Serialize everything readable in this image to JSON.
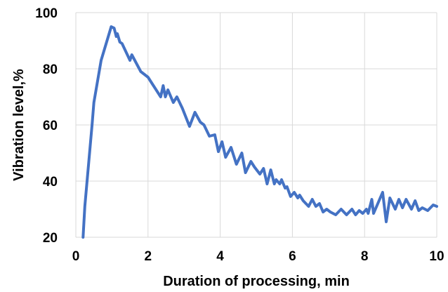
{
  "chart_data": {
    "type": "line",
    "title": "",
    "xlabel": "Duration of processing, min",
    "ylabel": "Vibration level,%",
    "xlim": [
      0,
      10
    ],
    "ylim": [
      20,
      100
    ],
    "x_ticks": [
      "0",
      "2",
      "4",
      "6",
      "8",
      "10"
    ],
    "y_ticks": [
      "20",
      "40",
      "60",
      "80",
      "100"
    ],
    "grid": true,
    "legend": "none",
    "line_color": "#4472c4",
    "series": [
      {
        "x": [
          0.2,
          0.25,
          0.45,
          0.5,
          0.7,
          0.98,
          1.06,
          1.12,
          1.15,
          1.22,
          1.28,
          1.5,
          1.55,
          1.8,
          1.9,
          2.0,
          2.15,
          2.35,
          2.42,
          2.48,
          2.55,
          2.7,
          2.8,
          2.95,
          3.15,
          3.3,
          3.45,
          3.55,
          3.7,
          3.85,
          3.95,
          4.05,
          4.15,
          4.3,
          4.45,
          4.6,
          4.7,
          4.85,
          4.95,
          5.1,
          5.2,
          5.3,
          5.4,
          5.5,
          5.55,
          5.65,
          5.7,
          5.8,
          5.85,
          5.95,
          6.05,
          6.15,
          6.2,
          6.3,
          6.45,
          6.55,
          6.65,
          6.75,
          6.85,
          6.95,
          7.05,
          7.2,
          7.35,
          7.5,
          7.65,
          7.75,
          7.85,
          7.95,
          8.05,
          8.1,
          8.2,
          8.25,
          8.35,
          8.5,
          8.6,
          8.7,
          8.85,
          8.95,
          9.05,
          9.15,
          9.3,
          9.4,
          9.5,
          9.6,
          9.75,
          9.9,
          10.0
        ],
        "y": [
          20,
          31,
          60,
          68,
          83,
          95,
          94.5,
          91.5,
          92.5,
          89.5,
          89,
          83,
          85,
          79,
          78,
          77,
          74,
          70,
          74,
          70,
          72.5,
          68,
          70,
          66,
          59.5,
          64.5,
          61,
          60,
          56,
          56.5,
          50.5,
          54,
          48.5,
          52,
          46,
          50,
          43,
          47,
          45,
          42.5,
          44.5,
          39,
          44,
          39,
          40.5,
          39,
          40.5,
          37.5,
          38,
          34.5,
          36,
          34,
          35,
          33,
          31,
          33.5,
          31,
          32,
          29,
          30,
          29,
          28,
          30,
          28,
          30,
          28,
          29.5,
          28.5,
          30,
          28.5,
          33.5,
          28.5,
          31.5,
          36,
          25.5,
          34,
          30,
          33.5,
          30.5,
          33.5,
          30,
          33,
          29.5,
          30.5,
          29.5,
          31.5,
          31
        ]
      }
    ]
  }
}
